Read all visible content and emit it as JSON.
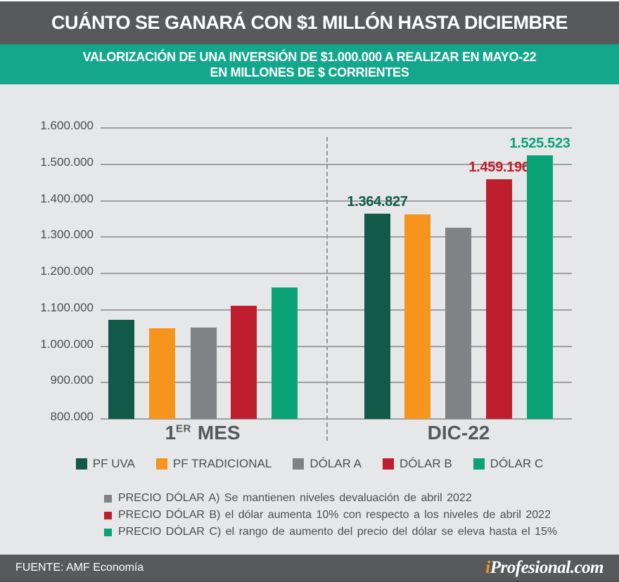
{
  "header": {
    "title": "CUÁNTO SE GANARÁ CON $1 MILLÓN HASTA DICIEMBRE"
  },
  "subheader": {
    "line1": "VALORIZACIÓN DE UNA INVERSIÓN DE $1.000.000 A REALIZAR EN MAYO-22",
    "line2": "EN MILLONES DE $ CORRIENTES"
  },
  "chart_data": {
    "type": "bar",
    "title": "CUÁNTO SE GANARÁ CON $1 MILLÓN HASTA DICIEMBRE",
    "subtitle": "VALORIZACIÓN DE UNA INVERSIÓN DE $1.000.000 A REALIZAR EN MAYO-22 EN MILLONES DE $ CORRIENTES",
    "categories": [
      "1er MES",
      "DIC-22"
    ],
    "categories_display": {
      "first": {
        "num": "1",
        "sup": "ER",
        "rest": "MES"
      },
      "second": "DIC-22"
    },
    "series": [
      {
        "name": "PF UVA",
        "color": "#115948",
        "values": [
          1072000,
          1364827
        ],
        "labels": [
          "",
          "1.364.827"
        ]
      },
      {
        "name": "PF TRADICIONAL",
        "color": "#f7941e",
        "values": [
          1049000,
          1362000
        ],
        "labels": [
          "",
          ""
        ]
      },
      {
        "name": "DÓLAR A",
        "color": "#808285",
        "values": [
          1052000,
          1325000
        ],
        "labels": [
          "",
          ""
        ]
      },
      {
        "name": "DÓLAR B",
        "color": "#bf1e2e",
        "values": [
          1112000,
          1459196
        ],
        "labels": [
          "",
          "1.459.196"
        ]
      },
      {
        "name": "DÓLAR C",
        "color": "#09a377",
        "values": [
          1162000,
          1525523
        ],
        "labels": [
          "",
          "1.525.523"
        ]
      }
    ],
    "ylim": [
      800000,
      1600000
    ],
    "ytick_step": 100000,
    "ytick_labels": [
      "1.600.000",
      "1.500.000",
      "1.400.000",
      "1.300.000",
      "1.200.000",
      "1.100.000",
      "1.000.000",
      "900.000",
      "800.000"
    ],
    "grid": true,
    "legend_position": "bottom"
  },
  "legend": {
    "items": [
      {
        "label": "PF UVA",
        "color": "#115948"
      },
      {
        "label": "PF TRADICIONAL",
        "color": "#f7941e"
      },
      {
        "label": "DÓLAR A",
        "color": "#808285"
      },
      {
        "label": "DÓLAR B",
        "color": "#bf1e2e"
      },
      {
        "label": "DÓLAR C",
        "color": "#09a377"
      }
    ]
  },
  "footnotes": [
    {
      "color": "#808285",
      "text": "PRECIO DÓLAR A) Se mantienen niveles devaluación de abril 2022"
    },
    {
      "color": "#bf1e2e",
      "text": "PRECIO DÓLAR B) el dólar aumenta 10% con respecto a los niveles de abril 2022"
    },
    {
      "color": "#09a377",
      "text": "PRECIO DÓLAR C) el rango de aumento del precio del dólar se eleva hasta el 15%"
    }
  ],
  "footer": {
    "source": "FUENTE: AMF Economía",
    "brand_prefix": "i",
    "brand_rest": "Profesional.com"
  },
  "colors": {
    "title_bar_bg": "#58595b",
    "subtitle_bg": "#14a78b",
    "page_bg": "#e6e7e8",
    "grid": "#9d9fa2",
    "axis_text": "#4d4d4f",
    "footer_bg": "#58595b",
    "brand_accent": "#f7941e"
  }
}
